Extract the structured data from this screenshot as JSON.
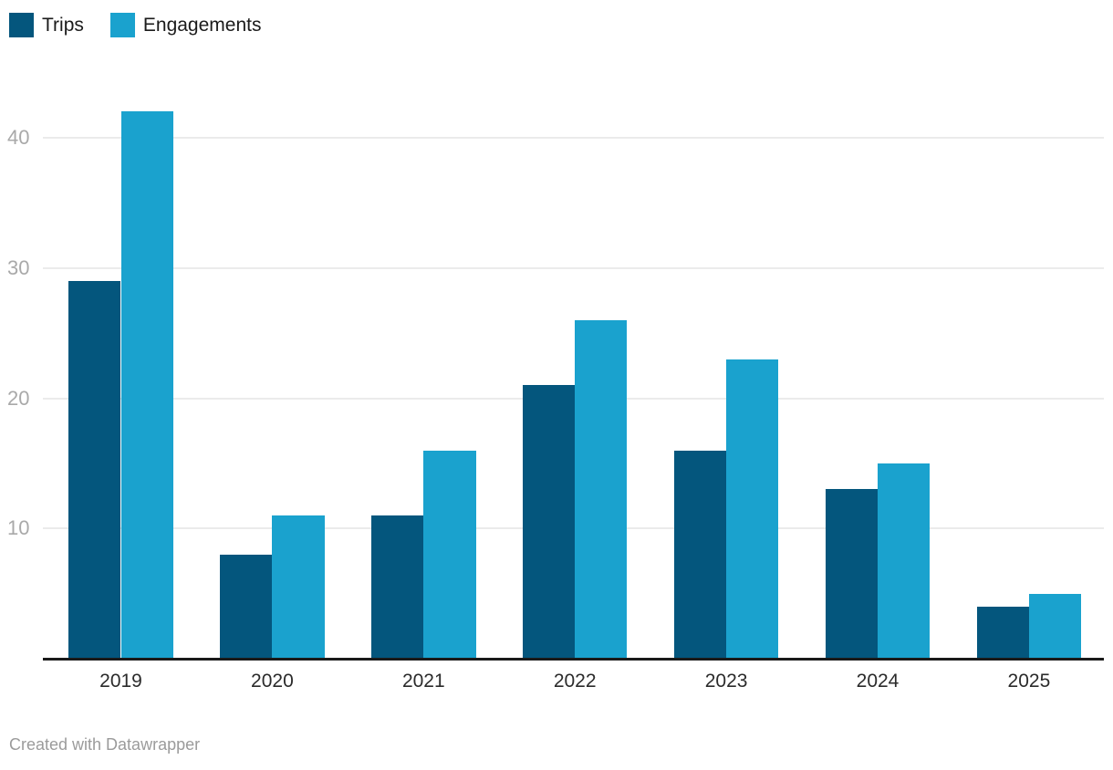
{
  "chart_data": {
    "type": "bar",
    "categories": [
      "2019",
      "2020",
      "2021",
      "2022",
      "2023",
      "2024",
      "2025"
    ],
    "series": [
      {
        "name": "Trips",
        "color": "#04567d",
        "values": [
          29,
          8,
          11,
          21,
          16,
          13,
          4
        ]
      },
      {
        "name": "Engagements",
        "color": "#1aa2ce",
        "values": [
          42,
          11,
          16,
          26,
          23,
          15,
          5
        ]
      }
    ],
    "title": "",
    "xlabel": "",
    "ylabel": "",
    "ylim": [
      0,
      45
    ],
    "yticks": [
      10,
      20,
      30,
      40
    ],
    "grid": "horizontal",
    "legend_position": "top-left"
  },
  "footer": {
    "credit": "Created with Datawrapper"
  },
  "colors": {
    "grid": "#ebebeb",
    "baseline": "#1a1a1a",
    "y_tick_label": "#a9a9a9",
    "x_tick_label": "#2b2b2b",
    "legend_text": "#1b1b1b",
    "credit_text": "#9b9b9b",
    "background": "#ffffff"
  }
}
